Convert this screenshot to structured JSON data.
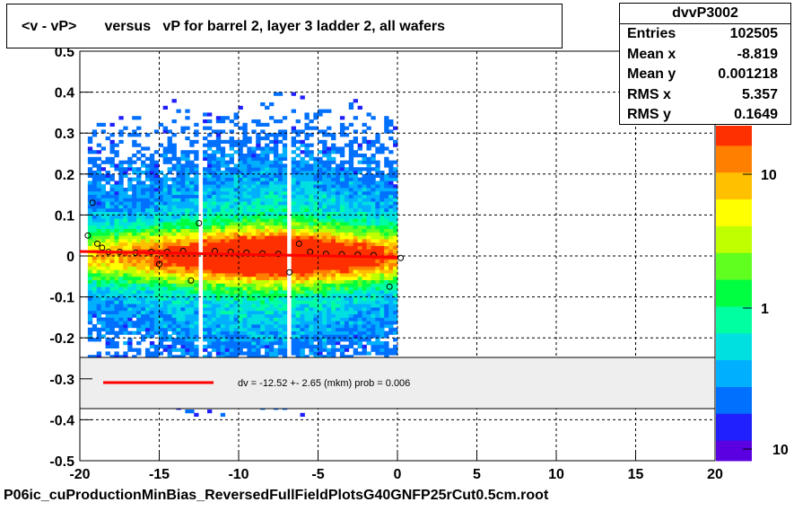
{
  "chart_data": {
    "type": "heatmap",
    "title": "<v - vP>       versus   vP for barrel 2, layer 3 ladder 2, all wafers",
    "xlim": [
      -20,
      20
    ],
    "ylim": [
      -0.5,
      0.5
    ],
    "x_ticks": [
      "-20",
      "-15",
      "-10",
      "-5",
      "0",
      "5",
      "10",
      "15",
      "20"
    ],
    "y_ticks": [
      "-0.5",
      "-0.4",
      "-0.3",
      "-0.2",
      "-0.1",
      "0",
      "0.1",
      "0.2",
      "0.3",
      "0.4",
      "0.5"
    ],
    "grid": true,
    "color_scale": "log",
    "colorbar_ticks": [
      "10",
      "1",
      "10"
    ],
    "filled_x_range": [
      -19.5,
      0
    ],
    "profile_points": [
      {
        "x": -19.5,
        "y": 0.05
      },
      {
        "x": -19.2,
        "y": 0.13
      },
      {
        "x": -18.9,
        "y": 0.03
      },
      {
        "x": -18.6,
        "y": 0.02
      },
      {
        "x": -18.2,
        "y": 0.01
      },
      {
        "x": -17.5,
        "y": 0.01
      },
      {
        "x": -16.5,
        "y": 0.008
      },
      {
        "x": -15.5,
        "y": 0.01
      },
      {
        "x": -15.0,
        "y": -0.02
      },
      {
        "x": -14.5,
        "y": 0.01
      },
      {
        "x": -13.5,
        "y": 0.012
      },
      {
        "x": -13.0,
        "y": -0.06
      },
      {
        "x": -12.5,
        "y": 0.08
      },
      {
        "x": -11.5,
        "y": 0.012
      },
      {
        "x": -10.5,
        "y": 0.01
      },
      {
        "x": -9.5,
        "y": 0.008
      },
      {
        "x": -8.5,
        "y": 0.006
      },
      {
        "x": -7.5,
        "y": 0.005
      },
      {
        "x": -6.8,
        "y": -0.04
      },
      {
        "x": -6.2,
        "y": 0.03
      },
      {
        "x": -5.5,
        "y": 0.01
      },
      {
        "x": -4.5,
        "y": 0.005
      },
      {
        "x": -3.5,
        "y": 0.004
      },
      {
        "x": -2.5,
        "y": 0.003
      },
      {
        "x": -1.5,
        "y": 0.002
      },
      {
        "x": -0.5,
        "y": -0.075
      },
      {
        "x": 0.2,
        "y": -0.005
      }
    ],
    "fit_line": {
      "x": [
        -20,
        0
      ],
      "y": [
        0.011,
        -0.003
      ]
    },
    "fit_legend": "dv =  -12.52 +-  2.65 (mkm) prob = 0.006"
  },
  "stats": {
    "name": "dvvP3002",
    "rows": [
      {
        "label": "Entries",
        "value": "102505"
      },
      {
        "label": "Mean x",
        "value": "-8.819"
      },
      {
        "label": "Mean y",
        "value": "0.001218"
      },
      {
        "label": "RMS x",
        "value": "5.357"
      },
      {
        "label": "RMS y",
        "value": "0.1649"
      }
    ]
  },
  "footer": "P06ic_cuProductionMinBias_ReversedFullFieldPlotsG40GNFP25rCut0.5cm.root",
  "colors": {
    "fit": "#ff0000",
    "legend_bg": "#eeeeee"
  }
}
